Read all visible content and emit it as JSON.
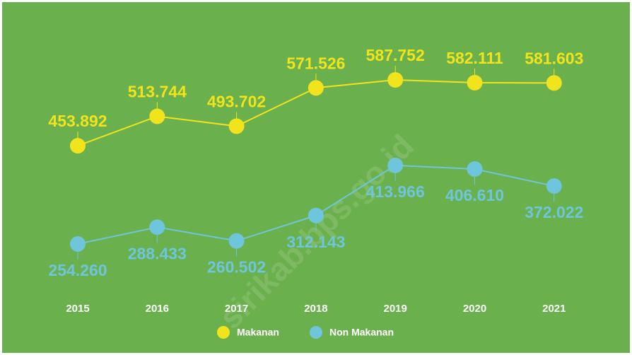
{
  "chart_data": {
    "type": "line",
    "categories": [
      "2015",
      "2016",
      "2017",
      "2018",
      "2019",
      "2020",
      "2021"
    ],
    "series": [
      {
        "name": "Makanan",
        "color": "#f2e41c",
        "values": [
          453892,
          513744,
          493702,
          571526,
          587752,
          582111,
          581603
        ],
        "value_labels": [
          "453.892",
          "513.744",
          "493.702",
          "571.526",
          "587.752",
          "582.111",
          "581.603"
        ]
      },
      {
        "name": "Non Makanan",
        "color": "#6ec6dc",
        "values": [
          254260,
          288433,
          260502,
          312143,
          413966,
          406610,
          372022
        ],
        "value_labels": [
          "254.260",
          "288.433",
          "260.502",
          "312.143",
          "413.966",
          "406.610",
          "372.022"
        ]
      }
    ],
    "watermark": "sirikab.bps.go.id"
  }
}
